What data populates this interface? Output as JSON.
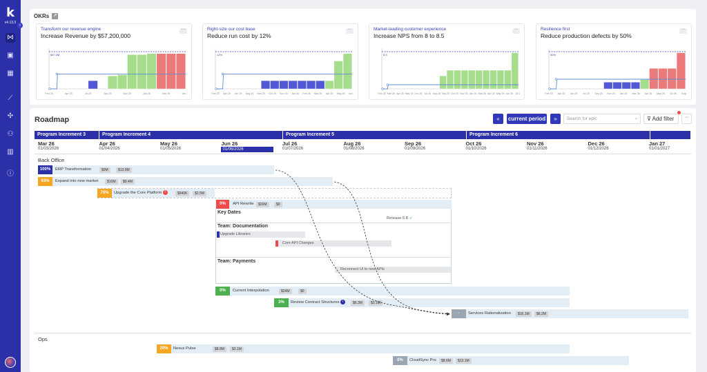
{
  "app": {
    "version": "v4.13.3",
    "logo_letter": "k",
    "colors": {
      "brand": "#2b2fa8",
      "green": "#a6dd8c",
      "red": "#ec7a7a",
      "blue_bar": "#5257d6",
      "orange": "#f5a623"
    }
  },
  "sidebar": {
    "items": [
      {
        "icon": "roadmap-icon",
        "glyph": "⋈"
      },
      {
        "icon": "briefcase-icon",
        "glyph": "▣"
      },
      {
        "icon": "calendar-icon",
        "glyph": "▦"
      },
      {
        "icon": "chart-icon",
        "glyph": "⟋"
      },
      {
        "icon": "puzzle-icon",
        "glyph": "✣"
      },
      {
        "icon": "team-icon",
        "glyph": "⚇"
      },
      {
        "icon": "building-icon",
        "glyph": "▥"
      },
      {
        "icon": "info-icon",
        "glyph": "ⓘ"
      }
    ]
  },
  "okrs": {
    "title": "OKRs",
    "cards": [
      {
        "objective": "Transform our revenue engine",
        "key_result": "Increase Revenue by $57,200,000",
        "target_label": "$57.2M",
        "x_ticks": [
          "Feb 25",
          "Apr 25",
          "Jul 25",
          "Sep 25",
          "Nov 25",
          "Jan 26",
          "Mar 26",
          "Jun 26"
        ],
        "bars": [
          {
            "v": 0,
            "c": "none"
          },
          {
            "v": 0,
            "c": "none"
          },
          {
            "v": 0,
            "c": "none"
          },
          {
            "v": 0,
            "c": "none"
          },
          {
            "v": 0.22,
            "c": "blue"
          },
          {
            "v": 0,
            "c": "none"
          },
          {
            "v": 0.35,
            "c": "green"
          },
          {
            "v": 0.38,
            "c": "green"
          },
          {
            "v": 0.92,
            "c": "green"
          },
          {
            "v": 0.92,
            "c": "green"
          },
          {
            "v": 0.95,
            "c": "green"
          },
          {
            "v": 0.95,
            "c": "red"
          },
          {
            "v": 0.95,
            "c": "red"
          },
          {
            "v": 0.95,
            "c": "red"
          }
        ]
      },
      {
        "objective": "Right-size our cost base",
        "key_result": "Reduce run cost by 12%",
        "target_label": "12%",
        "x_ticks": [
          "Feb 25",
          "Apr 25",
          "Jun 25",
          "Aug 25",
          "Sep 25",
          "Oct 25",
          "Nov 25",
          "Jan 26",
          "Feb 26",
          "Mar 26",
          "Apr 26",
          "May 26",
          "Jun 26"
        ],
        "bars": [
          {
            "v": 0,
            "c": "none"
          },
          {
            "v": 0,
            "c": "none"
          },
          {
            "v": 0,
            "c": "none"
          },
          {
            "v": 0,
            "c": "none"
          },
          {
            "v": 0,
            "c": "none"
          },
          {
            "v": 0.22,
            "c": "blue"
          },
          {
            "v": 0.22,
            "c": "blue"
          },
          {
            "v": 0.22,
            "c": "blue"
          },
          {
            "v": 0.22,
            "c": "blue"
          },
          {
            "v": 0.22,
            "c": "blue"
          },
          {
            "v": 0.22,
            "c": "blue"
          },
          {
            "v": 0.22,
            "c": "blue"
          },
          {
            "v": 0.22,
            "c": "green"
          },
          {
            "v": 0.75,
            "c": "green"
          },
          {
            "v": 0.95,
            "c": "green"
          }
        ]
      },
      {
        "objective": "Market-leading customer experience",
        "key_result": "Increase NPS from 8 to 8.5",
        "target_label": "8.5",
        "x_ticks": [
          "Feb 25",
          "Mar 25",
          "Apr 25",
          "May 25",
          "Jun 25",
          "Jul 25",
          "Aug 25",
          "Sep 25",
          "Oct 25",
          "Nov 25",
          "Jan 26",
          "Mar 26",
          "Apr 26",
          "May 26",
          "Jun 26",
          "Jul 26"
        ],
        "bars": [
          {
            "v": 0,
            "c": "none"
          },
          {
            "v": 0,
            "c": "none"
          },
          {
            "v": 0,
            "c": "none"
          },
          {
            "v": 0,
            "c": "none"
          },
          {
            "v": 0,
            "c": "none"
          },
          {
            "v": 0,
            "c": "none"
          },
          {
            "v": 0,
            "c": "none"
          },
          {
            "v": 0,
            "c": "none"
          },
          {
            "v": 0.35,
            "c": "green"
          },
          {
            "v": 0.5,
            "c": "green"
          },
          {
            "v": 0.5,
            "c": "green"
          },
          {
            "v": 0.5,
            "c": "green"
          },
          {
            "v": 0.5,
            "c": "green"
          },
          {
            "v": 0.5,
            "c": "green"
          },
          {
            "v": 0.5,
            "c": "green"
          },
          {
            "v": 0.5,
            "c": "green"
          },
          {
            "v": 0.5,
            "c": "green"
          },
          {
            "v": 0.5,
            "c": "green"
          },
          {
            "v": 0.97,
            "c": "green"
          }
        ]
      },
      {
        "objective": "Resilience first",
        "key_result": "Reduce production defects by 50%",
        "target_label": "50%",
        "x_ticks": [
          "Feb 25",
          "Apr 25",
          "Jun 25",
          "Jul 25",
          "Sep 25",
          "Nov 25",
          "Jan 26",
          "Mar 26",
          "Apr 26",
          "May 26",
          "Jul 26",
          "Aug 26"
        ],
        "bars": [
          {
            "v": 0,
            "c": "none"
          },
          {
            "v": 0,
            "c": "none"
          },
          {
            "v": 0,
            "c": "none"
          },
          {
            "v": 0,
            "c": "none"
          },
          {
            "v": 0,
            "c": "none"
          },
          {
            "v": 0,
            "c": "none"
          },
          {
            "v": 0.18,
            "c": "blue"
          },
          {
            "v": 0.18,
            "c": "blue"
          },
          {
            "v": 0.18,
            "c": "blue"
          },
          {
            "v": 0.18,
            "c": "blue"
          },
          {
            "v": 0.25,
            "c": "green"
          },
          {
            "v": 0.55,
            "c": "red"
          },
          {
            "v": 0.55,
            "c": "red"
          },
          {
            "v": 0.55,
            "c": "red"
          },
          {
            "v": 0.97,
            "c": "red"
          }
        ]
      }
    ]
  },
  "roadmap": {
    "title": "Roadmap",
    "prev_label": "«",
    "current_label": "current period",
    "next_label": "»",
    "search_placeholder": "Search for epic",
    "filter_label": "Add filter",
    "more_label": "···",
    "program_increments": [
      {
        "label": "Program Increment 3",
        "left": 0,
        "width": 94
      },
      {
        "label": "Program Increment 4",
        "left": 94,
        "width": 266
      },
      {
        "label": "Program Increment 5",
        "left": 360,
        "width": 266
      },
      {
        "label": "Program Increment 6",
        "left": 626,
        "width": 266
      },
      {
        "label": "",
        "left": 892,
        "width": 59
      }
    ],
    "months": [
      {
        "name": "Mar 26",
        "date": "01/03/2026"
      },
      {
        "name": "Apr 26",
        "date": "01/04/2026"
      },
      {
        "name": "May 26",
        "date": "01/05/2026"
      },
      {
        "name": "Jun 26",
        "date": "01/06/2026",
        "current": true
      },
      {
        "name": "Jul 26",
        "date": "01/07/2026"
      },
      {
        "name": "Aug 26",
        "date": "01/08/2026"
      },
      {
        "name": "Sep 26",
        "date": "01/09/2026"
      },
      {
        "name": "Oct 26",
        "date": "01/10/2026"
      },
      {
        "name": "Nov 26",
        "date": "01/11/2026"
      },
      {
        "name": "Dec 26",
        "date": "01/12/2026"
      },
      {
        "name": "Jan 27",
        "date": "01/01/2027"
      }
    ],
    "groups": {
      "back_office": "Back Office",
      "ops": "Ops"
    },
    "epics": {
      "erp": {
        "pct": "100%",
        "name": "ERP Transformation",
        "c1": "$9M",
        "c2": "$13.9M"
      },
      "expand": {
        "pct": "93%",
        "name": "Expand into new market",
        "c1": "$10M",
        "c2": "$9.4M"
      },
      "core": {
        "pct": "76%",
        "name": "Upgrade the Core Platform",
        "c1": "$940K",
        "c2": "$2.5M"
      },
      "api": {
        "pct": "0%",
        "name": "API Rewrite",
        "c1": "$26M",
        "c2": "$0"
      },
      "interp": {
        "pct": "0%",
        "name": "Current Interpolation",
        "c1": "$24M",
        "c2": "$0"
      },
      "review": {
        "pct": "3%",
        "name": "Review Contract Structures",
        "c1": "$6.3M",
        "c2": "$3.1M"
      },
      "services": {
        "pct": "-",
        "name": "Services Rationalization",
        "c1": "$16.1M",
        "c2": "$6.2M"
      },
      "nexus": {
        "pct": "29%",
        "name": "Nexus Pulse",
        "c1": "$8.8M",
        "c2": "$3.1M"
      },
      "cloud": {
        "pct": "0%",
        "name": "CloudSync Pro",
        "c1": "$8.6M",
        "c2": "$13.1M"
      }
    },
    "subpanel": {
      "key_dates": "Key Dates",
      "release": "Release 5.8",
      "team_docs": "Team: Documentation",
      "upgrade_libraries": "Upgrade Libraries",
      "core_api_changes": "Core API Changes",
      "team_payments": "Team: Payments",
      "reconnect": "Reconnect UI to new APIs"
    }
  }
}
